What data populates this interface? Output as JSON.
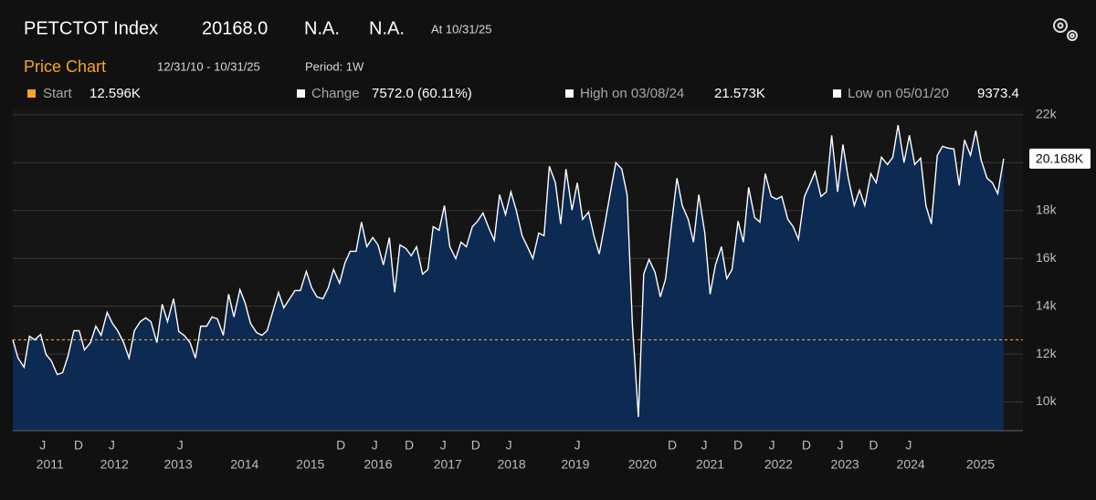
{
  "header": {
    "ticker": "PETCTOT Index",
    "last": "20168.0",
    "field2": "N.A.",
    "field3": "N.A.",
    "asof": "At 10/31/25",
    "section": "Price Chart",
    "range": "12/31/10 - 10/31/25",
    "period": "Period: 1W",
    "stats": [
      {
        "label": "Start",
        "value": "12.596K"
      },
      {
        "label": "Change",
        "value": "7572.0 (60.11%)"
      },
      {
        "label": "High on 03/08/24",
        "value": "21.573K"
      },
      {
        "label": "Low on 05/01/20",
        "value": "9373.4"
      }
    ]
  },
  "chart_data": {
    "type": "area",
    "color": "#ffffff",
    "fill": "#0c2a52",
    "reference_color": "#f5a623",
    "x": [
      2011.0,
      2011.08,
      2011.17,
      2011.25,
      2011.33,
      2011.42,
      2011.5,
      2011.58,
      2011.67,
      2011.75,
      2011.83,
      2011.92,
      2012.0,
      2012.08,
      2012.17,
      2012.25,
      2012.33,
      2012.42,
      2012.5,
      2012.58,
      2012.67,
      2012.75,
      2012.83,
      2012.92,
      2013.0,
      2013.08,
      2013.17,
      2013.25,
      2013.33,
      2013.42,
      2013.5,
      2013.58,
      2013.67,
      2013.75,
      2013.83,
      2013.92,
      2014.0,
      2014.08,
      2014.17,
      2014.25,
      2014.33,
      2014.42,
      2014.5,
      2014.58,
      2014.67,
      2014.75,
      2014.83,
      2014.92,
      2015.0,
      2015.08,
      2015.17,
      2015.25,
      2015.33,
      2015.42,
      2015.5,
      2015.58,
      2015.67,
      2015.75,
      2015.83,
      2015.92,
      2016.0,
      2016.08,
      2016.17,
      2016.25,
      2016.33,
      2016.42,
      2016.5,
      2016.58,
      2016.67,
      2016.75,
      2016.83,
      2016.92,
      2017.0,
      2017.08,
      2017.17,
      2017.25,
      2017.33,
      2017.42,
      2017.5,
      2017.58,
      2017.67,
      2017.75,
      2017.83,
      2017.92,
      2018.0,
      2018.08,
      2018.17,
      2018.25,
      2018.33,
      2018.42,
      2018.5,
      2018.58,
      2018.67,
      2018.75,
      2018.83,
      2018.92,
      2019.0,
      2019.08,
      2019.17,
      2019.25,
      2019.33,
      2019.42,
      2019.5,
      2019.58,
      2019.67,
      2019.75,
      2019.83,
      2019.92,
      2020.0,
      2020.08,
      2020.17,
      2020.25,
      2020.33,
      2020.42,
      2020.5,
      2020.58,
      2020.67,
      2020.75,
      2020.83,
      2020.92,
      2021.0,
      2021.08,
      2021.17,
      2021.25,
      2021.33,
      2021.42,
      2021.5,
      2021.58,
      2021.67,
      2021.75,
      2021.83,
      2021.92,
      2022.0,
      2022.08,
      2022.17,
      2022.25,
      2022.33,
      2022.42,
      2022.5,
      2022.58,
      2022.67,
      2022.75,
      2022.83,
      2022.92,
      2023.0,
      2023.08,
      2023.17,
      2023.25,
      2023.33,
      2023.42,
      2023.5,
      2023.58,
      2023.67,
      2023.75,
      2023.83,
      2023.92,
      2024.0,
      2024.08,
      2024.17,
      2024.25,
      2024.33,
      2024.42,
      2024.5,
      2024.58,
      2024.67,
      2024.75,
      2024.83,
      2024.92,
      2025.0,
      2025.08,
      2025.17,
      2025.25,
      2025.33,
      2025.42,
      2025.5,
      2025.58,
      2025.67,
      2025.75,
      2025.83,
      2025.92
    ],
    "values": [
      12596,
      11832,
      11450,
      12748,
      12596,
      12825,
      11985,
      11718,
      11145,
      11221,
      11909,
      12977,
      12977,
      12176,
      12481,
      13168,
      12786,
      13741,
      13283,
      12977,
      12481,
      11832,
      12977,
      13359,
      13512,
      13359,
      12481,
      14084,
      13359,
      14313,
      12939,
      12786,
      12481,
      11832,
      13168,
      13168,
      13550,
      13473,
      12786,
      14504,
      13550,
      14695,
      14122,
      13283,
      12901,
      12786,
      12977,
      13817,
      14580,
      13932,
      14313,
      14657,
      14657,
      15458,
      14771,
      14390,
      14313,
      14771,
      15535,
      14962,
      15802,
      16298,
      16298,
      17519,
      16489,
      16871,
      16565,
      15726,
      16871,
      14580,
      16565,
      16413,
      16107,
      16489,
      15344,
      15535,
      17329,
      17176,
      18207,
      16489,
      15993,
      16680,
      16489,
      17329,
      17558,
      17901,
      17252,
      16756,
      18665,
      17825,
      18779,
      18016,
      16947,
      16489,
      15993,
      17061,
      16947,
      19848,
      19161,
      17443,
      19733,
      18016,
      19161,
      17634,
      17939,
      16947,
      16184,
      17519,
      18779,
      20001,
      19733,
      18665,
      13244,
      9373.4,
      15344,
      15955,
      15420,
      14390,
      15153,
      17443,
      19352,
      18207,
      17634,
      16680,
      18665,
      17061,
      14504,
      15726,
      16489,
      15153,
      15535,
      17558,
      16680,
      18970,
      17710,
      17519,
      19543,
      18588,
      18474,
      18588,
      17634,
      17329,
      16794,
      18588,
      19084,
      19619,
      18588,
      18779,
      21146,
      18779,
      20764,
      19352,
      18207,
      18855,
      18207,
      19543,
      19161,
      20230,
      19924,
      20230,
      21573,
      20001,
      21146,
      19924,
      20191,
      18207,
      17443,
      20306,
      20688,
      20611,
      20573,
      19046,
      20955,
      20306,
      21336,
      20115,
      19352,
      19161,
      18703,
      20168
    ],
    "last_label": "20.168K",
    "xlim": [
      2011,
      2026.21
    ],
    "ylim": [
      8800,
      22300
    ],
    "yticks": [
      {
        "value": 10000,
        "label": "10k"
      },
      {
        "value": 12000,
        "label": "12k"
      },
      {
        "value": 14000,
        "label": "14k"
      },
      {
        "value": 16000,
        "label": "16k"
      },
      {
        "value": 18000,
        "label": "18k"
      },
      {
        "value": 20000,
        "label": "20k"
      },
      {
        "value": 22000,
        "label": "22k"
      }
    ],
    "xticks": [
      {
        "value": 2011.45,
        "label": "J"
      },
      {
        "value": 2011.99,
        "label": "D"
      },
      {
        "value": 2012.49,
        "label": "J"
      },
      {
        "value": 2013.52,
        "label": "J"
      },
      {
        "value": 2015.94,
        "label": "D"
      },
      {
        "value": 2016.45,
        "label": "J"
      },
      {
        "value": 2016.97,
        "label": "D"
      },
      {
        "value": 2017.48,
        "label": "J"
      },
      {
        "value": 2017.97,
        "label": "D"
      },
      {
        "value": 2018.47,
        "label": "J"
      },
      {
        "value": 2019.5,
        "label": "J"
      },
      {
        "value": 2020.93,
        "label": "D"
      },
      {
        "value": 2021.41,
        "label": "J"
      },
      {
        "value": 2021.92,
        "label": "D"
      },
      {
        "value": 2022.43,
        "label": "J"
      },
      {
        "value": 2022.95,
        "label": "D"
      },
      {
        "value": 2023.46,
        "label": "J"
      },
      {
        "value": 2023.96,
        "label": "D"
      },
      {
        "value": 2024.49,
        "label": "J"
      }
    ],
    "year_ticks": [
      {
        "value": 2011.56,
        "label": "2011"
      },
      {
        "value": 2012.53,
        "label": "2012"
      },
      {
        "value": 2013.49,
        "label": "2013"
      },
      {
        "value": 2014.49,
        "label": "2014"
      },
      {
        "value": 2015.48,
        "label": "2015"
      },
      {
        "value": 2016.5,
        "label": "2016"
      },
      {
        "value": 2017.55,
        "label": "2017"
      },
      {
        "value": 2018.51,
        "label": "2018"
      },
      {
        "value": 2019.47,
        "label": "2019"
      },
      {
        "value": 2020.48,
        "label": "2020"
      },
      {
        "value": 2021.5,
        "label": "2021"
      },
      {
        "value": 2022.53,
        "label": "2022"
      },
      {
        "value": 2023.53,
        "label": "2023"
      },
      {
        "value": 2024.52,
        "label": "2024"
      },
      {
        "value": 2025.57,
        "label": "2025"
      }
    ],
    "grid": true
  }
}
